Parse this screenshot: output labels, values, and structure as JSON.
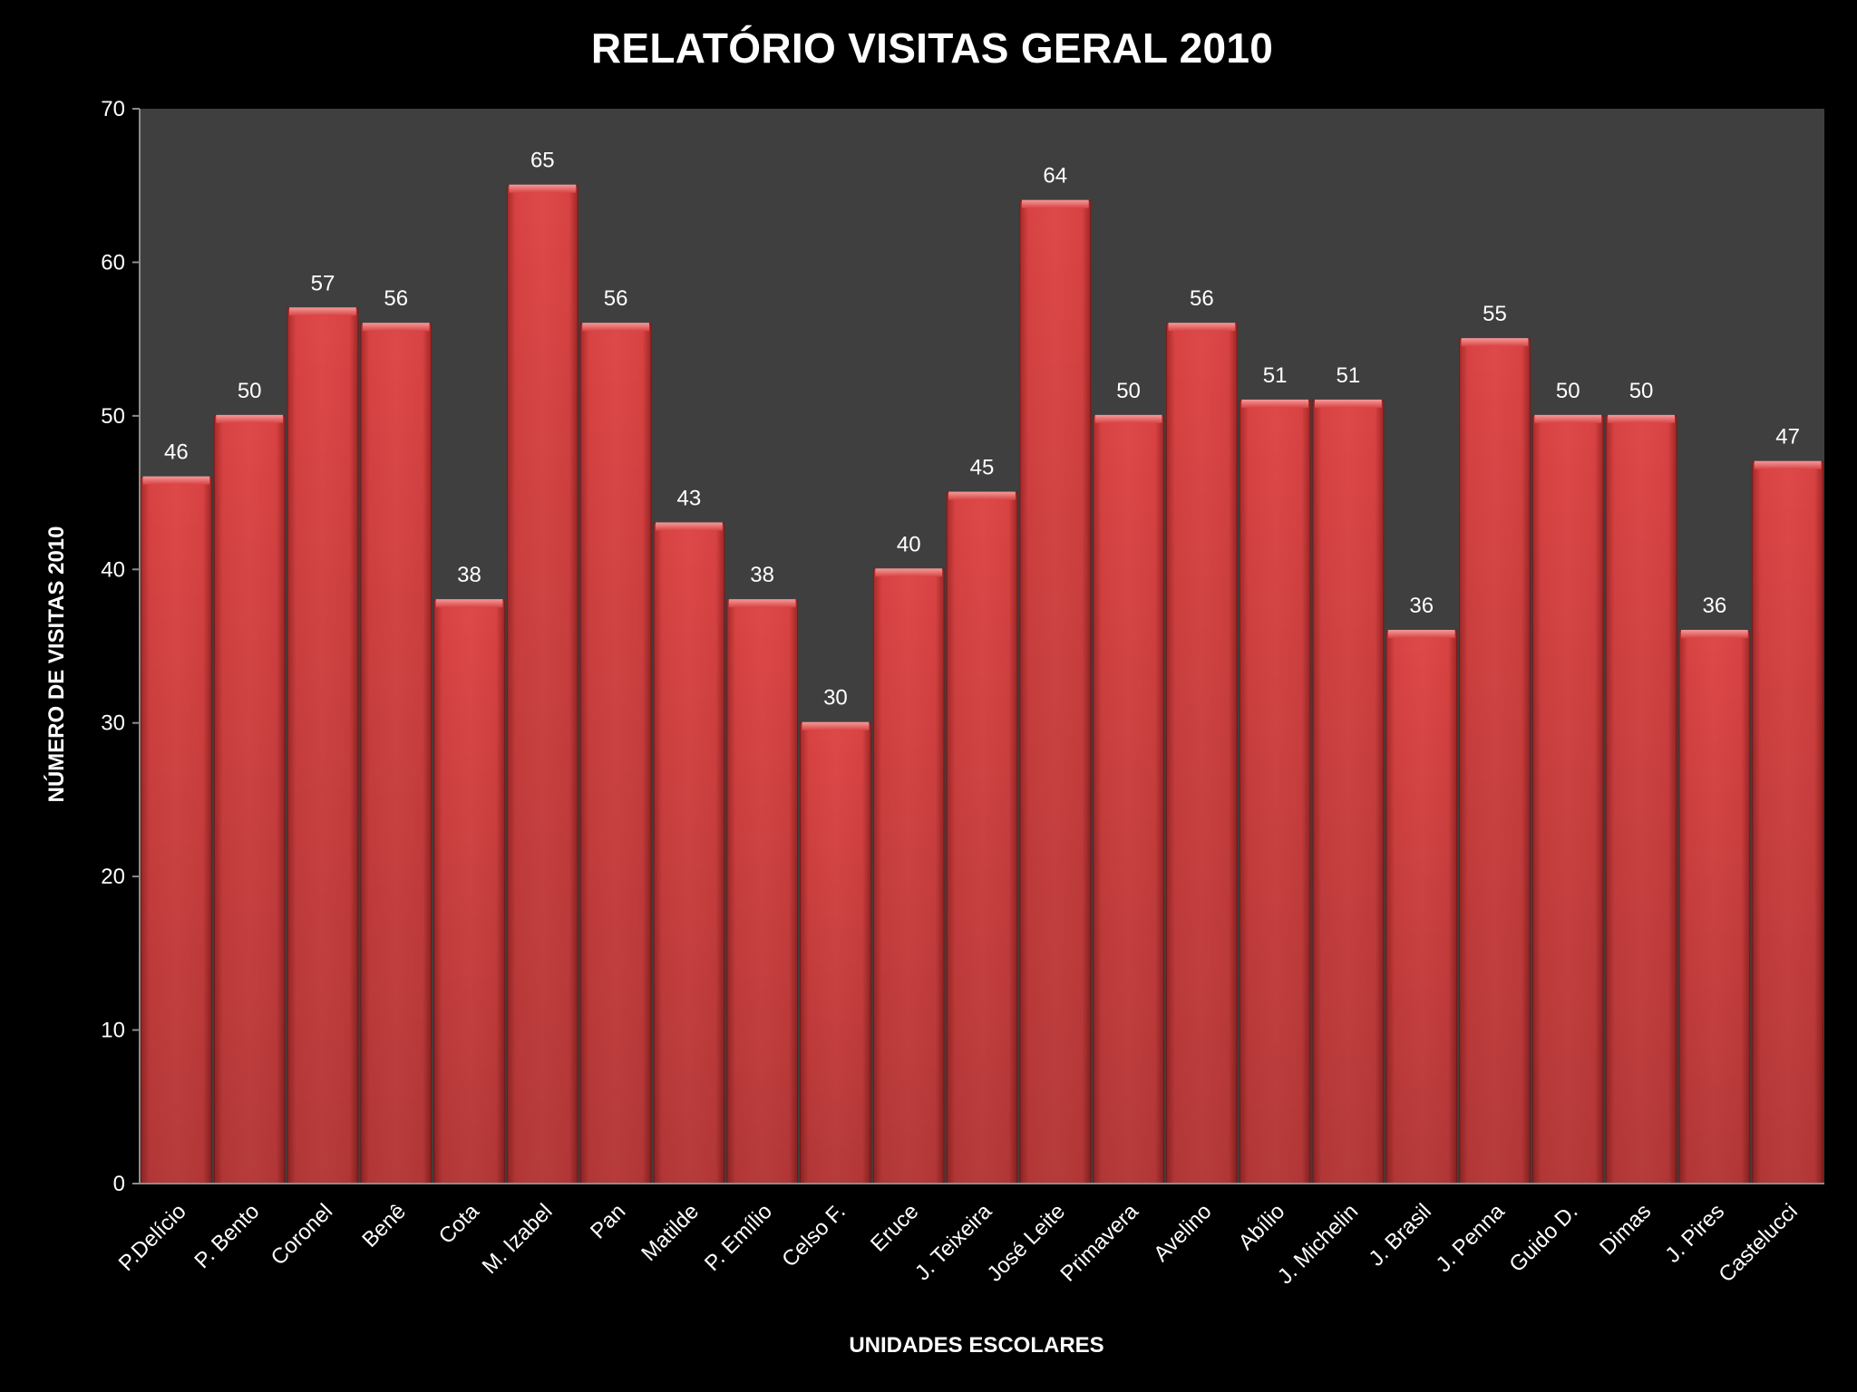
{
  "chart_data": {
    "type": "bar",
    "title": "RELATÓRIO VISITAS GERAL 2010",
    "xlabel": "UNIDADES ESCOLARES",
    "ylabel": "NÚMERO DE VISITAS 2010",
    "ylim": [
      0,
      70
    ],
    "yticks": [
      0,
      10,
      20,
      30,
      40,
      50,
      60,
      70
    ],
    "grid": false,
    "legend": "none",
    "categories": [
      "P.Delício",
      "P. Bento",
      "Coronel",
      "Benê",
      "Cota",
      "M. Izabel",
      "Pan",
      "Matilde",
      "P. Emílio",
      "Celso F.",
      "Eruce",
      "J. Teixeira",
      "José Leite",
      "Primavera",
      "Avelino",
      "Abílio",
      "J. Michelin",
      "J. Brasil",
      "J. Penna",
      "Guido D.",
      "Dimas",
      "J. Pires",
      "Castelucci"
    ],
    "values": [
      46,
      50,
      57,
      56,
      38,
      65,
      56,
      43,
      38,
      30,
      40,
      45,
      64,
      50,
      56,
      51,
      51,
      36,
      55,
      50,
      50,
      36,
      47
    ],
    "colors": {
      "background": "#000000",
      "plot_area": "#3f3f3f",
      "bar_fill": "#d23c3c",
      "bar_top": "#e86a6a",
      "text": "#ffffff",
      "axis": "#8c8c8c"
    }
  }
}
